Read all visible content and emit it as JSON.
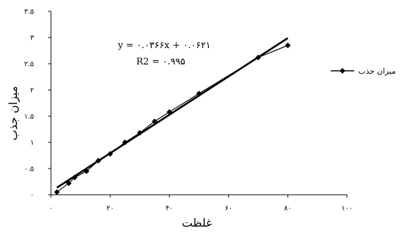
{
  "chart_data": {
    "type": "scatter",
    "xlabel": "غلظت",
    "ylabel": "میزان جذب",
    "xlim": [
      0,
      100
    ],
    "ylim": [
      0,
      3.5
    ],
    "x_ticks": [
      0,
      20,
      40,
      60,
      80,
      100
    ],
    "y_ticks": [
      0,
      0.5,
      1,
      1.5,
      2,
      2.5,
      3,
      3.5
    ],
    "x_tick_labels": [
      "۰",
      "۲۰",
      "۴۰",
      "۶۰",
      "۸۰",
      "۱۰۰"
    ],
    "y_tick_labels": [
      "۰",
      "۰.۵",
      "۱",
      "۱.۵",
      "۲",
      "۲.۵",
      "۳",
      "۳.۵"
    ],
    "series": [
      {
        "name": "میزان جذب",
        "marker": "diamond",
        "color": "#000000",
        "x": [
          2,
          6,
          8,
          12,
          16,
          20,
          25,
          30,
          35,
          40,
          50,
          70,
          80
        ],
        "y": [
          0.05,
          0.22,
          0.33,
          0.45,
          0.65,
          0.78,
          1.0,
          1.18,
          1.4,
          1.58,
          1.93,
          2.62,
          2.85
        ]
      }
    ],
    "trendline": {
      "slope": 0.0366,
      "intercept": 0.0621,
      "equation_text": "y = ۰.۰۳۶۶x + ۰.۰۶۲۱",
      "r2_text": "R2 = ۰.۹۹۵"
    },
    "grid": false,
    "legend_position": "right"
  }
}
